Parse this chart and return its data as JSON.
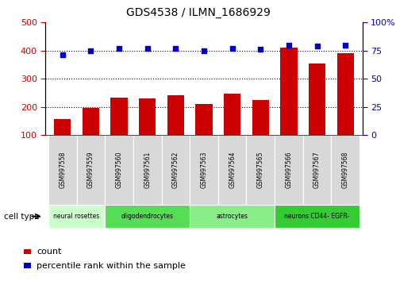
{
  "title": "GDS4538 / ILMN_1686929",
  "samples": [
    "GSM997558",
    "GSM997559",
    "GSM997560",
    "GSM997561",
    "GSM997562",
    "GSM997563",
    "GSM997564",
    "GSM997565",
    "GSM997566",
    "GSM997567",
    "GSM997568"
  ],
  "counts": [
    155,
    195,
    232,
    230,
    240,
    210,
    247,
    225,
    410,
    355,
    390
  ],
  "percentile_ranks": [
    71,
    75,
    77,
    77,
    77,
    75,
    77,
    76,
    80,
    79,
    80
  ],
  "cell_types": [
    {
      "label": "neural rosettes",
      "start": 0,
      "end": 2,
      "color": "#ccffcc"
    },
    {
      "label": "oligodendrocytes",
      "start": 2,
      "end": 5,
      "color": "#55dd55"
    },
    {
      "label": "astrocytes",
      "start": 5,
      "end": 8,
      "color": "#88ee88"
    },
    {
      "label": "neurons CD44- EGFR-",
      "start": 8,
      "end": 11,
      "color": "#33cc33"
    }
  ],
  "bar_color": "#cc0000",
  "dot_color": "#0000cc",
  "ylim_left": [
    100,
    500
  ],
  "ylim_right": [
    0,
    100
  ],
  "yticks_left": [
    100,
    200,
    300,
    400,
    500
  ],
  "yticks_right": [
    0,
    25,
    50,
    75,
    100
  ],
  "legend_count_label": "count",
  "legend_percentile_label": "percentile rank within the sample",
  "cell_type_label": "cell type"
}
